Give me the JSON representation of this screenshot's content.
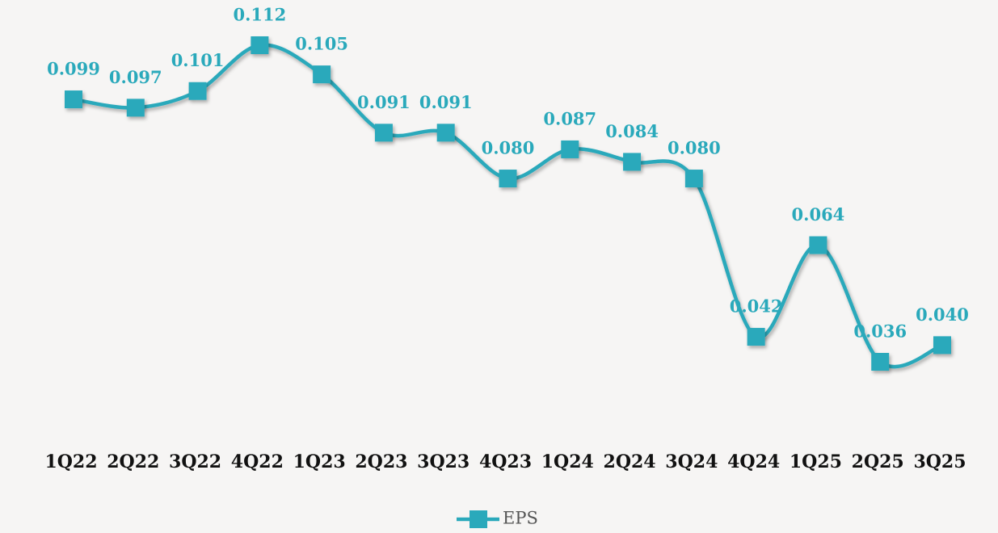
{
  "chart_data": {
    "type": "line",
    "categories": [
      "1Q22",
      "2Q22",
      "3Q22",
      "4Q22",
      "1Q23",
      "2Q23",
      "3Q23",
      "4Q23",
      "1Q24",
      "2Q24",
      "3Q24",
      "4Q24",
      "1Q25",
      "2Q25",
      "3Q25"
    ],
    "series": [
      {
        "name": "EPS",
        "color": "#2aa9bb",
        "values": [
          0.099,
          0.097,
          0.101,
          0.112,
          0.105,
          0.091,
          0.091,
          0.08,
          0.087,
          0.084,
          0.08,
          0.042,
          0.064,
          0.036,
          0.04
        ],
        "value_labels": [
          "0.099",
          "0.097",
          "0.101",
          "0.112",
          "0.105",
          "0.091",
          "0.091",
          "0.080",
          "0.087",
          "0.084",
          "0.080",
          "0.042",
          "0.064",
          "0.036",
          "0.040"
        ]
      }
    ],
    "smooth": true,
    "legend": "bottom"
  }
}
